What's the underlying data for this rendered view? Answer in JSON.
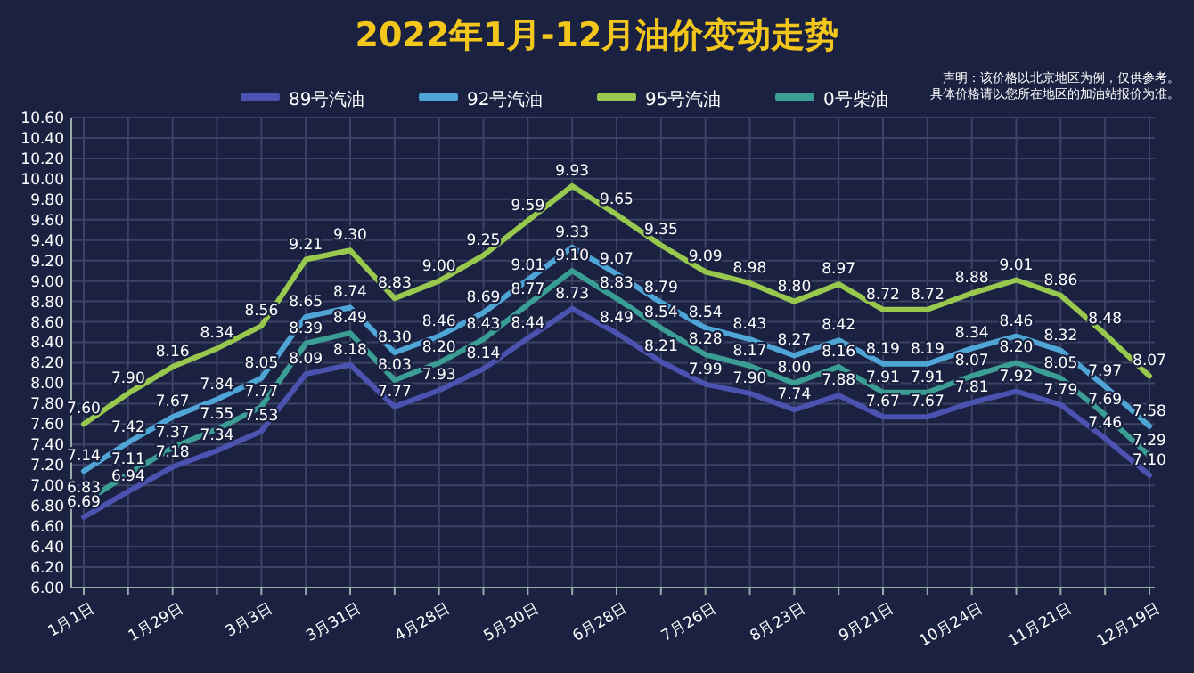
{
  "chart_data": {
    "type": "line",
    "title": "2022年1月-12月油价变动走势",
    "annotations": [
      "声明：该价格以北京地区为例，仅供参考。",
      "具体价格请以您所在地区的加油站报价为准。"
    ],
    "categories": [
      "1月1日",
      null,
      "1月29日",
      null,
      "3月3日",
      null,
      "3月31日",
      null,
      "4月28日",
      null,
      "5月30日",
      null,
      "6月28日",
      null,
      "7月26日",
      null,
      "8月23日",
      null,
      "9月21日",
      null,
      "10月24日",
      null,
      "11月21日",
      null,
      "12月19日"
    ],
    "series": [
      {
        "name": "89号汽油",
        "color": "#4b52b0",
        "values": [
          6.69,
          6.94,
          7.18,
          7.34,
          7.53,
          8.09,
          8.18,
          7.77,
          7.93,
          8.14,
          8.44,
          8.73,
          8.49,
          8.21,
          7.99,
          7.9,
          7.74,
          7.88,
          7.67,
          7.67,
          7.81,
          7.92,
          7.79,
          7.46,
          7.1
        ],
        "value_labels": [
          "6.69",
          "6.94",
          "7.18",
          "7.34",
          "7.53",
          "8.09",
          "8.18",
          "7.77",
          "7.93",
          "8.14",
          "8.44",
          "8.73",
          "8.49",
          "8.21",
          "7.99",
          "7.90",
          "7.74",
          "7.88",
          "7.67",
          "7.67",
          "7.81",
          "7.92",
          "7.79",
          "7.46",
          "7.10"
        ]
      },
      {
        "name": "92号汽油",
        "color": "#4fa6d6",
        "values": [
          7.14,
          7.42,
          7.67,
          7.84,
          8.05,
          8.65,
          8.74,
          8.3,
          8.46,
          8.69,
          9.01,
          9.33,
          9.07,
          8.79,
          8.54,
          8.43,
          8.27,
          8.42,
          8.19,
          8.19,
          8.34,
          8.46,
          8.32,
          7.97,
          7.58
        ],
        "value_labels": [
          "7.14",
          "7.42",
          "7.67",
          "7.84",
          "8.05",
          "8.65",
          "8.74",
          "8.30",
          "8.46",
          "8.69",
          "9.01",
          "9.33",
          "9.07",
          "8.79",
          "8.54",
          "8.43",
          "8.27",
          "8.42",
          "8.19",
          "8.19",
          "8.34",
          "8.46",
          "8.32",
          "7.97",
          "7.58"
        ]
      },
      {
        "name": "95号汽油",
        "color": "#98c84e",
        "values": [
          7.6,
          7.9,
          8.16,
          8.34,
          8.56,
          9.21,
          9.3,
          8.83,
          9.0,
          9.25,
          9.59,
          9.93,
          9.65,
          9.35,
          9.09,
          8.98,
          8.8,
          8.97,
          8.72,
          8.72,
          8.88,
          9.01,
          8.86,
          8.48,
          8.07
        ],
        "value_labels": [
          "7.60",
          "7.90",
          "8.16",
          "8.34",
          "8.56",
          "9.21",
          "9.30",
          "8.83",
          "9.00",
          "9.25",
          "9.59",
          "9.93",
          "9.65",
          "9.35",
          "9.09",
          "8.98",
          "8.80",
          "8.97",
          "8.72",
          "8.72",
          "8.88",
          "9.01",
          "8.86",
          "8.48",
          "8.07"
        ]
      },
      {
        "name": "0号柴油",
        "color": "#3a9e94",
        "values": [
          6.83,
          7.11,
          7.37,
          7.55,
          7.77,
          8.39,
          8.49,
          8.03,
          8.2,
          8.43,
          8.77,
          9.1,
          8.83,
          8.54,
          8.28,
          8.17,
          8.0,
          8.16,
          7.91,
          7.91,
          8.07,
          8.2,
          8.05,
          7.69,
          7.29
        ],
        "value_labels": [
          "6.83",
          "7.11",
          "7.37",
          "7.55",
          "7.77",
          "8.39",
          "8.49",
          "8.03",
          "8.20",
          "8.43",
          "8.77",
          "9.10",
          "8.83",
          "8.54",
          "8.28",
          "8.17",
          "8.00",
          "8.16",
          "7.91",
          "7.91",
          "8.07",
          "8.20",
          "8.05",
          "7.69",
          "7.29"
        ]
      }
    ],
    "ylim": [
      6,
      10.6
    ],
    "yticks": [
      {
        "value": 6,
        "label": "6.00"
      },
      {
        "value": 6.2,
        "label": "6.20"
      },
      {
        "value": 6.4,
        "label": "6.40"
      },
      {
        "value": 6.6,
        "label": "6.60"
      },
      {
        "value": 6.8,
        "label": "6.80"
      },
      {
        "value": 7,
        "label": "7.00"
      },
      {
        "value": 7.2,
        "label": "7.20"
      },
      {
        "value": 7.4,
        "label": "7.40"
      },
      {
        "value": 7.6,
        "label": "7.60"
      },
      {
        "value": 7.8,
        "label": "7.80"
      },
      {
        "value": 8,
        "label": "8.00"
      },
      {
        "value": 8.2,
        "label": "8.20"
      },
      {
        "value": 8.4,
        "label": "8.40"
      },
      {
        "value": 8.6,
        "label": "8.60"
      },
      {
        "value": 8.8,
        "label": "8.80"
      },
      {
        "value": 9,
        "label": "9.00"
      },
      {
        "value": 9.2,
        "label": "9.20"
      },
      {
        "value": 9.4,
        "label": "9.40"
      },
      {
        "value": 9.6,
        "label": "9.60"
      },
      {
        "value": 9.8,
        "label": "9.80"
      },
      {
        "value": 10,
        "label": "10.00"
      },
      {
        "value": 10.2,
        "label": "10.20"
      },
      {
        "value": 10.4,
        "label": "10.40"
      },
      {
        "value": 10.6,
        "label": "10.60"
      }
    ],
    "grid": true,
    "legend": "top",
    "marker": "none",
    "line_style": "solid"
  }
}
